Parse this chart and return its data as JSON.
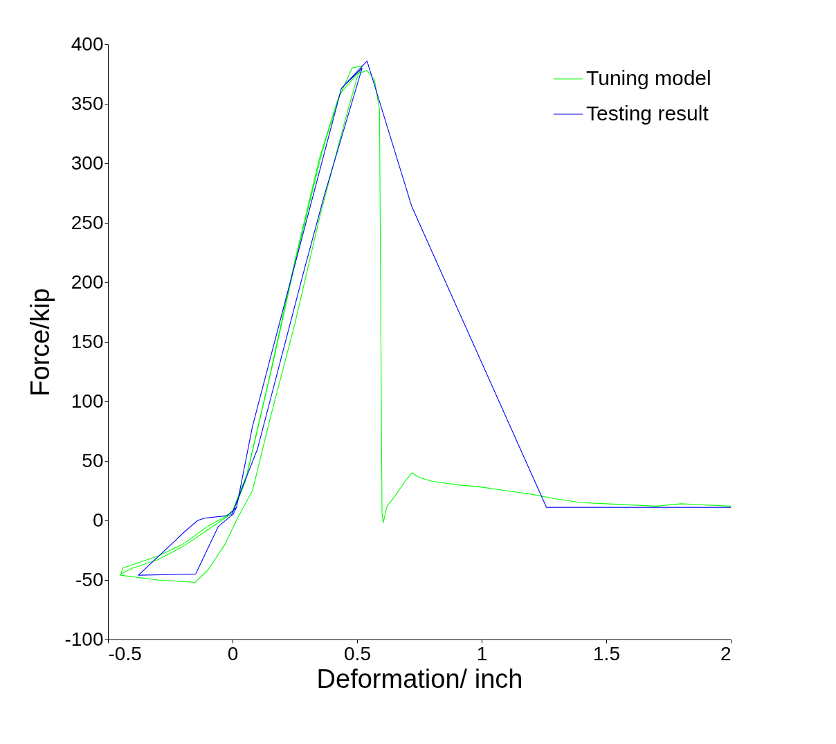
{
  "chart_data": {
    "type": "line",
    "xlabel": "Deformation/ inch",
    "ylabel": "Force/kip",
    "xlim": [
      -0.5,
      2
    ],
    "xticks": [
      -0.5,
      0,
      0.5,
      1,
      1.5,
      2
    ],
    "ylim": [
      -100,
      400
    ],
    "yticks": [
      -100,
      -50,
      0,
      50,
      100,
      150,
      200,
      250,
      300,
      350,
      400
    ],
    "grid": false,
    "legend": "top right",
    "marker": "none",
    "line_style": "solid",
    "series": [
      {
        "name": "Tuning model",
        "color": "#00ff00",
        "x": [
          -0.45,
          -0.4,
          -0.3,
          -0.2,
          -0.1,
          -0.03,
          0,
          0.05,
          0.15,
          0.25,
          0.35,
          0.42,
          0.48,
          0.52,
          0.5,
          0.45,
          0.35,
          0.25,
          0.15,
          0.08,
          0.02,
          -0.03,
          -0.1,
          -0.15,
          -0.3,
          -0.45,
          -0.44,
          -0.3,
          -0.2,
          -0.1,
          -0.03,
          0,
          0.06,
          0.16,
          0.26,
          0.36,
          0.43,
          0.5,
          0.54,
          0.57,
          0.59,
          0.6,
          0.605,
          0.62,
          0.65,
          0.7,
          0.72,
          0.75,
          0.8,
          0.9,
          1.0,
          1.1,
          1.2,
          1.3,
          1.4,
          1.5,
          1.6,
          1.7,
          1.8,
          1.9,
          2.0
        ],
        "values": [
          -45,
          -40,
          -33,
          -22,
          -8,
          2,
          6,
          32,
          122,
          218,
          305,
          352,
          380,
          382,
          372,
          335,
          255,
          165,
          85,
          25,
          2,
          -20,
          -42,
          -52,
          -50,
          -46,
          -40,
          -30,
          -20,
          -5,
          3,
          8,
          40,
          130,
          225,
          310,
          358,
          375,
          378,
          370,
          345,
          6,
          -2,
          12,
          20,
          35,
          40,
          36,
          33,
          30,
          28,
          25,
          22,
          18,
          15,
          14,
          13,
          12,
          14,
          13,
          12
        ]
      },
      {
        "name": "Testing result",
        "color": "#0000ff",
        "x": [
          0,
          0.016,
          0.08,
          0.2,
          0.437,
          0.52,
          0.367,
          0.287,
          0.1,
          -0.005,
          -0.057,
          -0.148,
          -0.378,
          -0.19,
          -0.14,
          -0.11,
          -0.02,
          0.016,
          0.08,
          0.2,
          0.437,
          0.54,
          0.719,
          1.26,
          2.0
        ],
        "values": [
          4,
          11,
          79,
          175,
          363,
          380,
          272,
          210,
          60,
          4,
          -5,
          -45,
          -46,
          -9,
          0,
          2,
          4,
          11,
          79,
          175,
          363,
          386,
          264,
          11,
          11
        ]
      }
    ]
  }
}
